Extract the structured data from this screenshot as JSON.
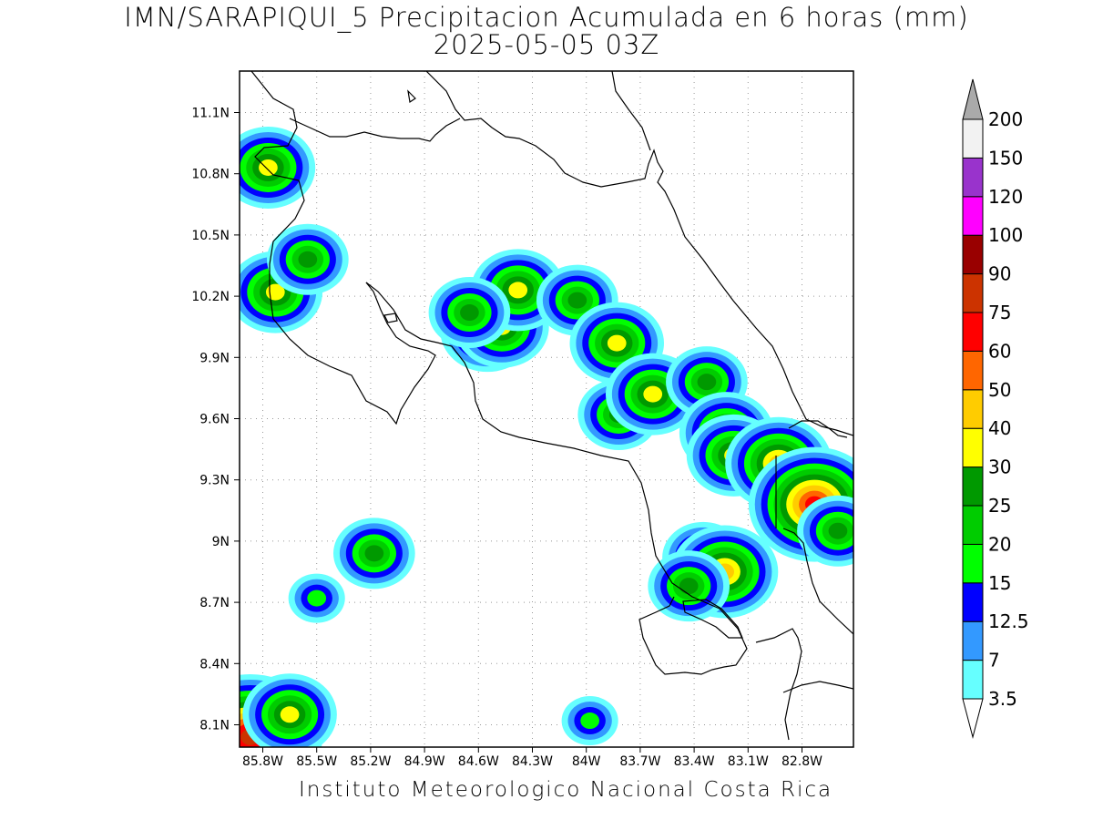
{
  "title_line1": "IMN/SARAPIQUI_5 Precipitacion Acumulada en 6 horas (mm)",
  "title_line2": "2025-05-05 03Z",
  "footer": "Instituto Meteorologico Nacional Costa Rica",
  "map": {
    "lon_ticks": [
      "85.8W",
      "85.5W",
      "85.2W",
      "84.9W",
      "84.6W",
      "84.3W",
      "84W",
      "83.7W",
      "83.4W",
      "83.1W",
      "82.8W"
    ],
    "lat_ticks": [
      "11.1N",
      "10.8N",
      "10.5N",
      "10.2N",
      "9.9N",
      "9.6N",
      "9.3N",
      "9N",
      "8.7N",
      "8.4N",
      "8.1N"
    ]
  },
  "colorbar": {
    "levels": [
      "3.5",
      "7",
      "12.5",
      "15",
      "20",
      "25",
      "30",
      "40",
      "50",
      "60",
      "75",
      "90",
      "100",
      "120",
      "150",
      "200"
    ],
    "colors": [
      "#66ffff",
      "#3399ff",
      "#0000ff",
      "#00ff00",
      "#00cc00",
      "#009900",
      "#ffff00",
      "#ffcc00",
      "#ff6600",
      "#ff0000",
      "#cc3300",
      "#990000",
      "#ff00ff",
      "#9933cc",
      "#f2f2f2",
      "#aaaaaa"
    ]
  },
  "precip_cells": [
    {
      "lon": -85.77,
      "lat": 10.83,
      "mm": 30
    },
    {
      "lon": -85.73,
      "lat": 10.22,
      "mm": 30
    },
    {
      "lon": -85.55,
      "lat": 10.38,
      "mm": 25
    },
    {
      "lon": -85.18,
      "lat": 8.94,
      "mm": 25
    },
    {
      "lon": -84.55,
      "lat": 10.03,
      "mm": 30
    },
    {
      "lon": -84.47,
      "lat": 10.05,
      "mm": 30
    },
    {
      "lon": -84.38,
      "lat": 10.23,
      "mm": 30
    },
    {
      "lon": -84.65,
      "lat": 10.12,
      "mm": 25
    },
    {
      "lon": -84.05,
      "lat": 10.18,
      "mm": 25
    },
    {
      "lon": -83.83,
      "lat": 9.97,
      "mm": 30
    },
    {
      "lon": -83.82,
      "lat": 9.62,
      "mm": 25
    },
    {
      "lon": -83.63,
      "lat": 9.72,
      "mm": 30
    },
    {
      "lon": -83.33,
      "lat": 9.78,
      "mm": 25
    },
    {
      "lon": -83.22,
      "lat": 9.53,
      "mm": 30
    },
    {
      "lon": -83.18,
      "lat": 9.42,
      "mm": 30
    },
    {
      "lon": -82.93,
      "lat": 9.38,
      "mm": 40
    },
    {
      "lon": -82.73,
      "lat": 9.18,
      "mm": 60
    },
    {
      "lon": -82.6,
      "lat": 9.05,
      "mm": 25
    },
    {
      "lon": -83.35,
      "lat": 8.92,
      "mm": 25
    },
    {
      "lon": -83.23,
      "lat": 8.85,
      "mm": 40
    },
    {
      "lon": -83.43,
      "lat": 8.78,
      "mm": 25
    },
    {
      "lon": -83.98,
      "lat": 8.12,
      "mm": 15
    },
    {
      "lon": -85.87,
      "lat": 8.04,
      "mm": 75
    },
    {
      "lon": -85.65,
      "lat": 8.15,
      "mm": 30
    },
    {
      "lon": -85.5,
      "lat": 8.72,
      "mm": 15
    }
  ]
}
